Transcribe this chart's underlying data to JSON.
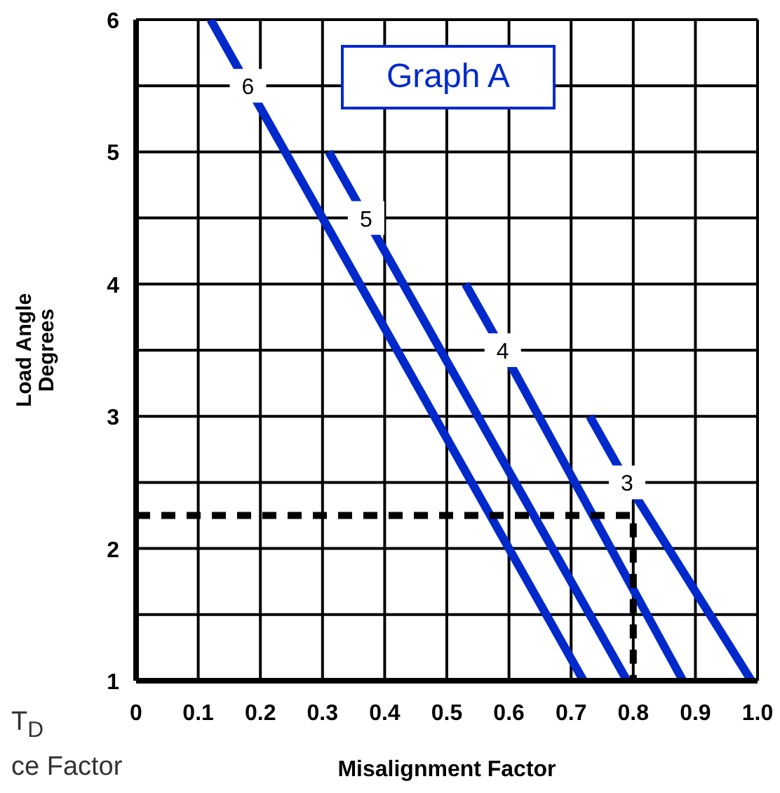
{
  "chart_data": {
    "type": "line",
    "title": "Graph A",
    "xlabel": "Misalignment Factor",
    "ylabel": "Load Angle\nDegrees",
    "xlim": [
      0,
      1
    ],
    "ylim": [
      1,
      6
    ],
    "xticks": [
      0,
      0.1,
      0.2,
      0.3,
      0.4,
      0.5,
      0.6,
      0.7,
      0.8,
      0.9,
      {
        "value": 1,
        "label": "1.0"
      }
    ],
    "yticks": [
      1,
      {
        "value": 1.5,
        "label": null
      },
      2,
      {
        "value": 2.5,
        "label": null
      },
      3,
      {
        "value": 3.5,
        "label": null
      },
      4,
      {
        "value": 4.5,
        "label": null
      },
      5,
      {
        "value": 5.5,
        "label": null
      },
      6
    ],
    "grid": true,
    "series": [
      {
        "name": "6",
        "color": "#0029cc",
        "x": [
          0.12,
          0.18,
          0.72
        ],
        "values": [
          6,
          5.5,
          1
        ]
      },
      {
        "name": "5",
        "color": "#0029cc",
        "x": [
          0.31,
          0.37,
          0.79
        ],
        "values": [
          5,
          4.5,
          1
        ]
      },
      {
        "name": "4",
        "color": "#0029cc",
        "x": [
          0.53,
          0.59,
          0.88
        ],
        "values": [
          4,
          3.5,
          1
        ]
      },
      {
        "name": "3",
        "color": "#0029cc",
        "x": [
          0.73,
          0.79,
          0.99
        ],
        "values": [
          3,
          2.5,
          1
        ]
      },
      {
        "color": "#000000",
        "line_style": "dashed",
        "x": [
          0,
          0.8,
          0.8
        ],
        "values": [
          2.25,
          2.25,
          1
        ]
      }
    ],
    "annotations": [
      "T$_{D}$",
      "ce Factor"
    ]
  }
}
